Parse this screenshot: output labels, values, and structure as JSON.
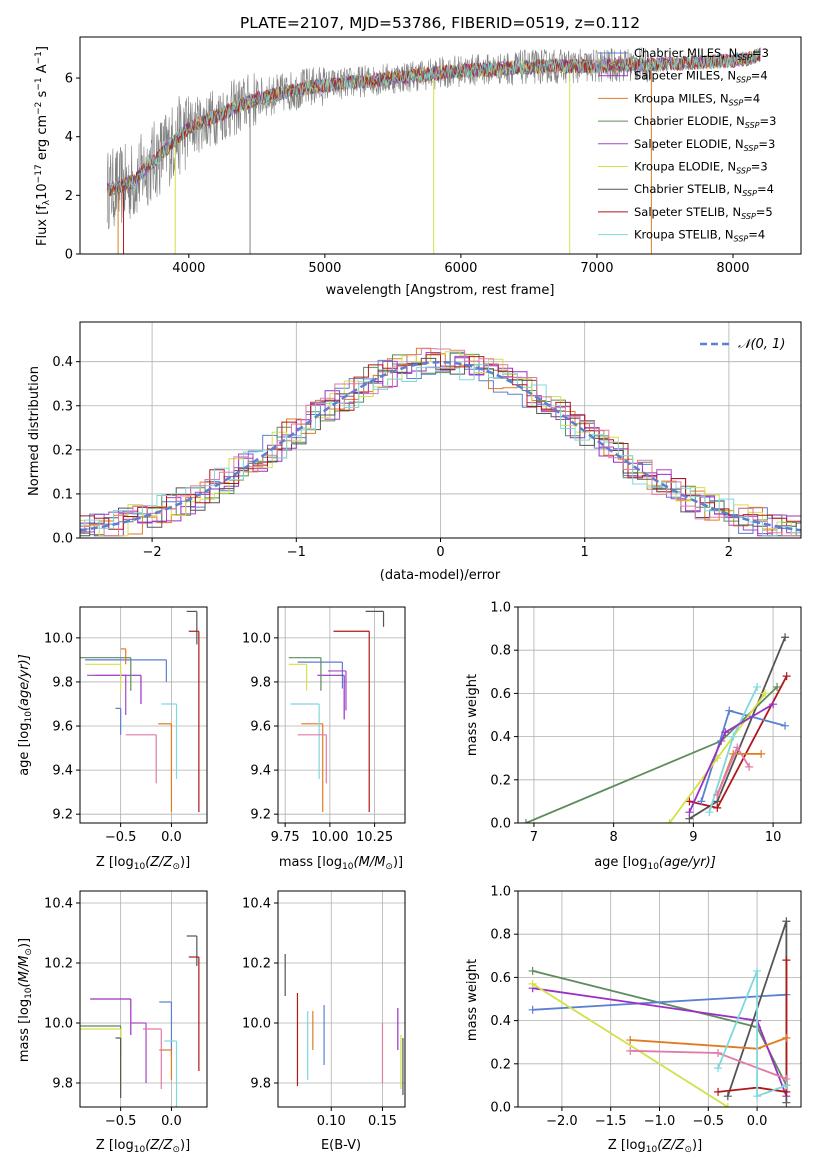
{
  "palette": {
    "Chabrier MILES": "#5b7fd1",
    "Salpeter MILES": "#9b30c4",
    "Kroupa MILES": "#e07b22",
    "Chabrier ELODIE": "#5e8c5e",
    "Salpeter ELODIE": "#a347c2",
    "Kroupa ELODIE": "#d4e048",
    "Chabrier STELIB": "#555555",
    "Salpeter STELIB": "#b01818",
    "Kroupa STELIB": "#7fd8dc",
    "data": "#808080",
    "pinkish": "#e07aa8"
  },
  "chart_data": [
    {
      "id": "spectrum",
      "type": "line",
      "title": "PLATE=2107, MJD=53786, FIBERID=0519, z=0.112",
      "xlabel": "wavelength [Angstrom, rest frame]",
      "ylabel_main": "Flux [f",
      "ylabel_sub": "λ",
      "ylabel_rest": "10",
      "ylabel_exp1": "−17",
      "ylabel_mid": " erg cm",
      "ylabel_exp2": "−2",
      "ylabel_mid2": " s",
      "ylabel_exp3": "−1",
      "ylabel_end": " A",
      "ylabel_exp4": "−1",
      "ylabel_close": "]",
      "xlim": [
        3200,
        8500
      ],
      "ylim": [
        0,
        7.4
      ],
      "xticks": [
        4000,
        5000,
        6000,
        7000,
        8000
      ],
      "yticks": [
        0,
        2,
        4,
        6
      ],
      "continuum": [
        [
          3400,
          2.2
        ],
        [
          3500,
          2.3
        ],
        [
          3600,
          2.5
        ],
        [
          3700,
          3.0
        ],
        [
          3800,
          3.4
        ],
        [
          3900,
          3.9
        ],
        [
          4000,
          4.3
        ],
        [
          4100,
          4.5
        ],
        [
          4200,
          4.7
        ],
        [
          4300,
          4.9
        ],
        [
          4400,
          5.1
        ],
        [
          4500,
          5.3
        ],
        [
          4600,
          5.4
        ],
        [
          4700,
          5.5
        ],
        [
          4800,
          5.6
        ],
        [
          4900,
          5.7
        ],
        [
          5000,
          5.75
        ],
        [
          5200,
          5.85
        ],
        [
          5400,
          5.95
        ],
        [
          5600,
          6.05
        ],
        [
          5800,
          6.15
        ],
        [
          6000,
          6.25
        ],
        [
          6200,
          6.3
        ],
        [
          6400,
          6.35
        ],
        [
          6600,
          6.4
        ],
        [
          6800,
          6.4
        ],
        [
          7000,
          6.4
        ],
        [
          7200,
          6.45
        ],
        [
          7400,
          6.45
        ],
        [
          7600,
          6.5
        ],
        [
          7800,
          6.55
        ],
        [
          8000,
          6.6
        ],
        [
          8100,
          6.65
        ],
        [
          8200,
          6.8
        ]
      ],
      "legend": [
        {
          "name": "Chabrier MILES",
          "n": "3"
        },
        {
          "name": "Salpeter MILES",
          "n": "4"
        },
        {
          "name": "Kroupa MILES",
          "n": "4"
        },
        {
          "name": "Chabrier ELODIE",
          "n": "3"
        },
        {
          "name": "Salpeter ELODIE",
          "n": "3"
        },
        {
          "name": "Kroupa ELODIE",
          "n": "3"
        },
        {
          "name": "Chabrier STELIB",
          "n": "4"
        },
        {
          "name": "Salpeter STELIB",
          "n": "5"
        },
        {
          "name": "Kroupa STELIB",
          "n": "4"
        }
      ],
      "legend_n_label": "N",
      "legend_n_sub": "SSP"
    },
    {
      "id": "residuals",
      "type": "line",
      "xlabel": "(data-model)/error",
      "ylabel": "Normed distribution",
      "xlim": [
        -2.5,
        2.5
      ],
      "ylim": [
        0,
        0.49
      ],
      "xticks": [
        -2,
        -1,
        0,
        1,
        2
      ],
      "yticks": [
        0.0,
        0.1,
        0.2,
        0.3,
        0.4
      ],
      "legend_label": "𝒩(0, 1)",
      "legend_position": "top-right",
      "grid": true
    },
    {
      "id": "age-vs-Z",
      "type": "scatter",
      "xlabel": "Z [log",
      "xlabel_sub": "10",
      "xlabel_mid": "(Z/Z",
      "xlabel_sub2": "⊙",
      "xlabel_end": ")]",
      "ylabel": "age  [log",
      "ylabel_sub": "10",
      "ylabel_end": "(age/yr)]",
      "xlim": [
        -0.9,
        0.35
      ],
      "ylim": [
        9.16,
        10.14
      ],
      "xticks": [
        -0.5,
        0.0
      ],
      "yticks": [
        9.2,
        9.4,
        9.6,
        9.8,
        10.0
      ],
      "points": [
        {
          "c": "Chabrier MILES",
          "x": -0.05,
          "y": 9.9,
          "xe": 0.8,
          "ye": 0.1
        },
        {
          "c": "Salpeter MILES",
          "x": -0.3,
          "y": 9.83,
          "xe": 0.45,
          "ye": 0.13
        },
        {
          "c": "Kroupa MILES",
          "x": 0.0,
          "y": 9.61,
          "xe": 0.13,
          "ye": 0.4
        },
        {
          "c": "Chabrier ELODIE",
          "x": -0.4,
          "y": 9.91,
          "xe": 0.5,
          "ye": 0.15
        },
        {
          "c": "Salpeter ELODIE",
          "x": -0.45,
          "y": 9.83,
          "xe": 0.38,
          "ye": 0.18
        },
        {
          "c": "Kroupa ELODIE",
          "x": -0.5,
          "y": 9.88,
          "xe": 0.35,
          "ye": 0.12
        },
        {
          "c": "Chabrier STELIB",
          "x": 0.25,
          "y": 10.12,
          "xe": 0.1,
          "ye": 0.15
        },
        {
          "c": "Salpeter STELIB",
          "x": 0.27,
          "y": 10.03,
          "xe": 0.1,
          "ye": 0.82
        },
        {
          "c": "Kroupa STELIB",
          "x": 0.05,
          "y": 9.7,
          "xe": 0.15,
          "ye": 0.34
        },
        {
          "c": "pinkish",
          "x": -0.15,
          "y": 9.56,
          "xe": 0.3,
          "ye": 0.22
        },
        {
          "c": "Chabrier MILES",
          "x": -0.5,
          "y": 9.68,
          "xe": 0.05,
          "ye": 0.12
        },
        {
          "c": "Kroupa MILES",
          "x": -0.45,
          "y": 9.95,
          "xe": 0.05,
          "ye": 0.07
        }
      ]
    },
    {
      "id": "age-vs-mass",
      "type": "scatter",
      "xlabel": "mass [log",
      "xlabel_sub": "10",
      "xlabel_mid": "(M/M",
      "xlabel_sub2": "⊙",
      "xlabel_end": ")]",
      "xlim": [
        9.71,
        10.42
      ],
      "ylim": [
        9.16,
        10.14
      ],
      "xticks": [
        9.75,
        10.0,
        10.25
      ],
      "yticks": [
        9.2,
        9.4,
        9.6,
        9.8,
        10.0
      ],
      "points": [
        {
          "c": "Chabrier MILES",
          "x": 10.07,
          "y": 9.89,
          "xe": 0.25,
          "ye": 0.12
        },
        {
          "c": "Salpeter MILES",
          "x": 10.08,
          "y": 9.83,
          "xe": 0.15,
          "ye": 0.2
        },
        {
          "c": "Kroupa MILES",
          "x": 9.96,
          "y": 9.61,
          "xe": 0.12,
          "ye": 0.4
        },
        {
          "c": "Chabrier ELODIE",
          "x": 9.95,
          "y": 9.91,
          "xe": 0.18,
          "ye": 0.15
        },
        {
          "c": "Salpeter ELODIE",
          "x": 10.09,
          "y": 9.85,
          "xe": 0.1,
          "ye": 0.18
        },
        {
          "c": "Kroupa ELODIE",
          "x": 9.87,
          "y": 9.88,
          "xe": 0.1,
          "ye": 0.12
        },
        {
          "c": "Chabrier STELIB",
          "x": 10.3,
          "y": 10.12,
          "xe": 0.1,
          "ye": 0.07
        },
        {
          "c": "Salpeter STELIB",
          "x": 10.22,
          "y": 10.03,
          "xe": 0.2,
          "ye": 0.82
        },
        {
          "c": "Kroupa STELIB",
          "x": 9.94,
          "y": 9.7,
          "xe": 0.16,
          "ye": 0.34
        },
        {
          "c": "pinkish",
          "x": 9.98,
          "y": 9.56,
          "xe": 0.16,
          "ye": 0.22
        }
      ]
    },
    {
      "id": "weight-vs-age",
      "type": "line",
      "xlabel": "age  [log",
      "xlabel_sub": "10",
      "xlabel_end": "(age/yr)]",
      "ylabel": "mass weight",
      "xlim": [
        6.8,
        10.35
      ],
      "ylim": [
        0,
        1
      ],
      "xticks": [
        7,
        8,
        9,
        10
      ],
      "yticks": [
        0.0,
        0.2,
        0.4,
        0.6,
        0.8,
        1.0
      ],
      "series": [
        {
          "c": "Chabrier ELODIE",
          "pts": [
            [
              6.9,
              0
            ],
            [
              9.35,
              0.38
            ],
            [
              10.05,
              0.63
            ]
          ]
        },
        {
          "c": "Chabrier STELIB",
          "pts": [
            [
              8.95,
              0.02
            ],
            [
              9.3,
              0.1
            ],
            [
              10.15,
              0.86
            ]
          ]
        },
        {
          "c": "Salpeter STELIB",
          "pts": [
            [
              8.95,
              0.1
            ],
            [
              9.3,
              0.07
            ],
            [
              10.17,
              0.68
            ]
          ]
        },
        {
          "c": "Chabrier MILES",
          "pts": [
            [
              9.1,
              0.1
            ],
            [
              9.45,
              0.52
            ],
            [
              10.15,
              0.45
            ]
          ]
        },
        {
          "c": "Kroupa ELODIE",
          "pts": [
            [
              8.7,
              0
            ],
            [
              9.3,
              0.3
            ],
            [
              9.9,
              0.6
            ]
          ]
        },
        {
          "c": "Kroupa STELIB",
          "pts": [
            [
              9.2,
              0.05
            ],
            [
              9.5,
              0.4
            ],
            [
              9.8,
              0.63
            ]
          ]
        },
        {
          "c": "Kroupa MILES",
          "pts": [
            [
              9.3,
              0.13
            ],
            [
              9.5,
              0.32
            ],
            [
              9.85,
              0.32
            ]
          ]
        },
        {
          "c": "pinkish",
          "pts": [
            [
              9.3,
              0.13
            ],
            [
              9.55,
              0.35
            ],
            [
              9.7,
              0.26
            ]
          ]
        },
        {
          "c": "Salpeter MILES",
          "pts": [
            [
              8.95,
              0.05
            ],
            [
              9.4,
              0.42
            ],
            [
              10.0,
              0.55
            ]
          ]
        }
      ]
    },
    {
      "id": "mass-vs-Z",
      "type": "scatter",
      "xlabel": "Z [log",
      "xlabel_sub": "10",
      "xlabel_mid": "(Z/Z",
      "xlabel_sub2": "⊙",
      "xlabel_end": ")]",
      "ylabel": "mass [log",
      "ylabel_sub": "10",
      "ylabel_mid": "(M/M",
      "ylabel_sub2": "⊙",
      "ylabel_end": ")]",
      "xlim": [
        -0.9,
        0.35
      ],
      "ylim": [
        9.72,
        10.44
      ],
      "xticks": [
        -0.5,
        0.0
      ],
      "yticks": [
        9.8,
        10.0,
        10.2,
        10.4
      ],
      "points": [
        {
          "c": "Chabrier MILES",
          "x": 0.0,
          "y": 10.07,
          "xe": 0.12,
          "ye": 0.18
        },
        {
          "c": "Salpeter MILES",
          "x": -0.4,
          "y": 10.08,
          "xe": 0.4,
          "ye": 0.12
        },
        {
          "c": "Kroupa MILES",
          "x": 0.0,
          "y": 9.91,
          "xe": 0.12,
          "ye": 0.1
        },
        {
          "c": "Chabrier ELODIE",
          "x": -0.5,
          "y": 9.99,
          "xe": 0.45,
          "ye": 0.1
        },
        {
          "c": "Salpeter ELODIE",
          "x": -0.25,
          "y": 10.0,
          "xe": 0.15,
          "ye": 0.2
        },
        {
          "c": "Kroupa ELODIE",
          "x": -0.5,
          "y": 9.98,
          "xe": 0.4,
          "ye": 0.2
        },
        {
          "c": "Chabrier STELIB",
          "x": 0.25,
          "y": 10.29,
          "xe": 0.1,
          "ye": 0.1
        },
        {
          "c": "Salpeter STELIB",
          "x": 0.27,
          "y": 10.22,
          "xe": 0.1,
          "ye": 0.38
        },
        {
          "c": "Kroupa STELIB",
          "x": 0.05,
          "y": 9.94,
          "xe": 0.12,
          "ye": 0.32
        },
        {
          "c": "pinkish",
          "x": -0.1,
          "y": 9.98,
          "xe": 0.18,
          "ye": 0.2
        },
        {
          "c": "Chabrier STELIB",
          "x": -0.5,
          "y": 9.95,
          "xe": 0.05,
          "ye": 0.2
        }
      ]
    },
    {
      "id": "mass-vs-ebv",
      "type": "scatter",
      "xlabel": "E(B-V)",
      "xlim": [
        0.048,
        0.172
      ],
      "ylim": [
        9.72,
        10.44
      ],
      "xticks": [
        0.1,
        0.15
      ],
      "yticks": [
        9.8,
        10.0,
        10.2,
        10.4
      ],
      "points": [
        {
          "c": "Chabrier STELIB",
          "x": 0.055,
          "y": 10.23,
          "ye": 0.14
        },
        {
          "c": "Salpeter STELIB",
          "x": 0.067,
          "y": 10.1,
          "ye": 0.31
        },
        {
          "c": "Kroupa STELIB",
          "x": 0.077,
          "y": 10.04,
          "ye": 0.23
        },
        {
          "c": "Kroupa MILES",
          "x": 0.082,
          "y": 10.04,
          "ye": 0.13
        },
        {
          "c": "Chabrier MILES",
          "x": 0.093,
          "y": 10.06,
          "ye": 0.2
        },
        {
          "c": "pinkish",
          "x": 0.15,
          "y": 10.0,
          "ye": 0.2
        },
        {
          "c": "Salpeter MILES",
          "x": 0.165,
          "y": 10.05,
          "ye": 0.14
        },
        {
          "c": "Kroupa ELODIE",
          "x": 0.168,
          "y": 9.96,
          "ye": 0.18
        },
        {
          "c": "Chabrier STELIB",
          "x": 0.17,
          "y": 9.95,
          "ye": 0.19
        }
      ]
    },
    {
      "id": "weight-vs-Z",
      "type": "line",
      "xlabel": "Z [log",
      "xlabel_sub": "10",
      "xlabel_mid": "(Z/Z",
      "xlabel_sub2": "⊙",
      "xlabel_end": ")]",
      "ylabel": "mass weight",
      "xlim": [
        -2.45,
        0.45
      ],
      "ylim": [
        0,
        1
      ],
      "xticks": [
        -2.0,
        -1.5,
        -1.0,
        -0.5,
        0.0
      ],
      "yticks": [
        0.0,
        0.2,
        0.4,
        0.6,
        0.8,
        1.0
      ],
      "series": [
        {
          "c": "Chabrier ELODIE",
          "pts": [
            [
              -2.3,
              0.63
            ],
            [
              0.0,
              0.37
            ],
            [
              0.3,
              0.1
            ]
          ]
        },
        {
          "c": "Chabrier MILES",
          "pts": [
            [
              -2.3,
              0.45
            ],
            [
              0.3,
              0.52
            ]
          ]
        },
        {
          "c": "Salpeter MILES",
          "pts": [
            [
              -2.3,
              0.55
            ],
            [
              0.0,
              0.4
            ],
            [
              0.3,
              0.05
            ]
          ]
        },
        {
          "c": "Kroupa ELODIE",
          "pts": [
            [
              -2.3,
              0.57
            ],
            [
              -0.3,
              0.0
            ]
          ]
        },
        {
          "c": "Chabrier STELIB",
          "pts": [
            [
              -0.3,
              0.05
            ],
            [
              0.3,
              0.86
            ],
            [
              0.3,
              0.02
            ]
          ]
        },
        {
          "c": "Salpeter STELIB",
          "pts": [
            [
              -0.4,
              0.07
            ],
            [
              0.0,
              0.09
            ],
            [
              0.3,
              0.07
            ],
            [
              0.3,
              0.68
            ]
          ]
        },
        {
          "c": "Kroupa MILES",
          "pts": [
            [
              -1.3,
              0.31
            ],
            [
              0.0,
              0.27
            ],
            [
              0.3,
              0.32
            ]
          ]
        },
        {
          "c": "pinkish",
          "pts": [
            [
              -1.3,
              0.26
            ],
            [
              -0.4,
              0.25
            ],
            [
              0.3,
              0.13
            ]
          ]
        },
        {
          "c": "Kroupa STELIB",
          "pts": [
            [
              -0.4,
              0.18
            ],
            [
              0.0,
              0.63
            ],
            [
              0.0,
              0.05
            ],
            [
              0.3,
              0.1
            ]
          ]
        }
      ]
    }
  ]
}
